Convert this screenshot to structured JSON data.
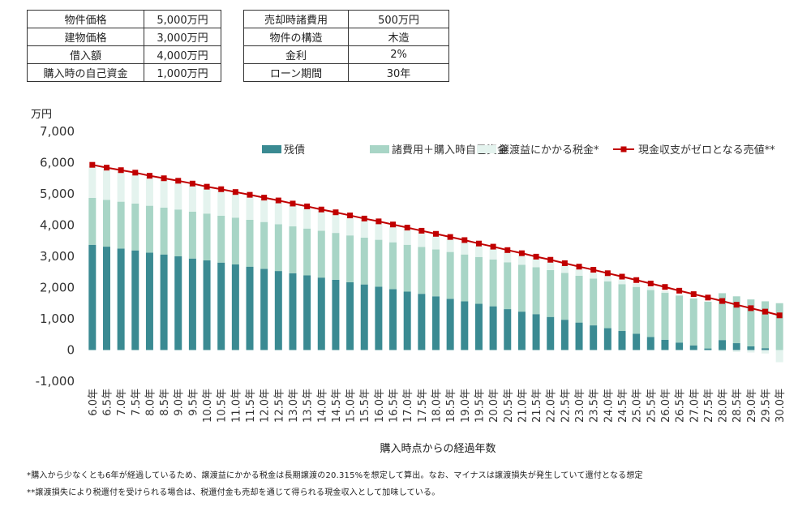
{
  "params_left": [
    {
      "key": "物件価格",
      "value": "5,000万円"
    },
    {
      "key": "建物価格",
      "value": "3,000万円"
    },
    {
      "key": "借入額",
      "value": "4,000万円"
    },
    {
      "key": "購入時の自己資金",
      "value": "1,000万円"
    }
  ],
  "params_right": [
    {
      "key": "売却時諸費用",
      "value": "500万円"
    },
    {
      "key": "物件の構造",
      "value": "木造"
    },
    {
      "key": "金利",
      "value": "2%"
    },
    {
      "key": "ローン期間",
      "value": "30年"
    }
  ],
  "chart_data": {
    "type": "bar",
    "stacked": true,
    "ylabel": "万円",
    "xlabel": "購入時点からの経過年数",
    "ylim": [
      -1000,
      7000
    ],
    "yticks": [
      -1000,
      0,
      1000,
      2000,
      3000,
      4000,
      5000,
      6000,
      7000
    ],
    "ytick_labels": [
      "-1,000",
      "0",
      "1,000",
      "2,000",
      "3,000",
      "4,000",
      "5,000",
      "6,000",
      "7,000"
    ],
    "legend_position": "top-right",
    "categories": [
      "6.0年",
      "6.5年",
      "7.0年",
      "7.5年",
      "8.0年",
      "8.5年",
      "9.0年",
      "9.5年",
      "10.0年",
      "10.5年",
      "11.0年",
      "11.5年",
      "12.0年",
      "12.5年",
      "13.0年",
      "13.5年",
      "14.0年",
      "14.5年",
      "15.0年",
      "15.5年",
      "16.0年",
      "16.5年",
      "17.0年",
      "17.5年",
      "18.0年",
      "18.5年",
      "19.0年",
      "19.5年",
      "20.0年",
      "20.5年",
      "21.0年",
      "21.5年",
      "22.0年",
      "22.5年",
      "23.0年",
      "23.5年",
      "24.0年",
      "24.5年",
      "25.0年",
      "25.5年",
      "26.0年",
      "26.5年",
      "27.0年",
      "27.5年",
      "28.0年",
      "28.5年",
      "29.0年",
      "29.5年",
      "30.0年"
    ],
    "series": [
      {
        "name": "残債",
        "type": "bar",
        "color": "#3a8a92",
        "values": [
          3370,
          3310,
          3250,
          3190,
          3120,
          3060,
          3000,
          2930,
          2870,
          2800,
          2740,
          2670,
          2600,
          2530,
          2460,
          2390,
          2320,
          2250,
          2170,
          2100,
          2030,
          1950,
          1870,
          1800,
          1720,
          1640,
          1560,
          1480,
          1400,
          1310,
          1230,
          1150,
          1060,
          970,
          880,
          790,
          700,
          610,
          520,
          420,
          330,
          240,
          150,
          50,
          320,
          220,
          120,
          60,
          0
        ]
      },
      {
        "name": "諸費用＋購入時自己資金",
        "type": "bar",
        "color": "#a8d5c6",
        "values": [
          1500,
          1500,
          1500,
          1500,
          1500,
          1500,
          1500,
          1500,
          1500,
          1500,
          1500,
          1500,
          1500,
          1500,
          1500,
          1500,
          1500,
          1500,
          1500,
          1500,
          1500,
          1500,
          1500,
          1500,
          1500,
          1500,
          1500,
          1500,
          1500,
          1500,
          1500,
          1500,
          1500,
          1500,
          1500,
          1500,
          1500,
          1500,
          1500,
          1500,
          1500,
          1500,
          1500,
          1500,
          1500,
          1500,
          1500,
          1500,
          1500
        ]
      },
      {
        "name": "譲渡益にかかる税金*",
        "type": "bar",
        "color": "#e4f3ee",
        "values": [
          1010,
          980,
          960,
          940,
          910,
          890,
          870,
          840,
          820,
          800,
          770,
          750,
          730,
          700,
          680,
          660,
          630,
          610,
          590,
          560,
          540,
          510,
          490,
          470,
          440,
          420,
          400,
          370,
          350,
          320,
          300,
          280,
          250,
          230,
          210,
          180,
          160,
          130,
          110,
          90,
          60,
          40,
          10,
          -10,
          -40,
          -60,
          -80,
          -110,
          -390
        ]
      },
      {
        "name": "現金収支がゼロとなる売値**",
        "type": "line",
        "color": "#c00000",
        "values": [
          5930,
          5840,
          5760,
          5680,
          5580,
          5500,
          5420,
          5330,
          5230,
          5150,
          5060,
          4970,
          4880,
          4790,
          4690,
          4600,
          4500,
          4410,
          4310,
          4210,
          4120,
          4020,
          3920,
          3820,
          3720,
          3620,
          3520,
          3410,
          3310,
          3200,
          3100,
          2990,
          2890,
          2780,
          2670,
          2570,
          2460,
          2350,
          2240,
          2130,
          2020,
          1900,
          1790,
          1680,
          1570,
          1450,
          1340,
          1230,
          1110
        ]
      }
    ]
  },
  "footnotes": {
    "note1": "*購入から少なくとも6年が経過しているため、譲渡益にかかる税金は長期譲渡の20.315%を想定して算出。なお、マイナスは譲渡損失が発生していて還付となる想定",
    "note2": "**譲渡損失により税還付を受けられる場合は、税還付金も売却を通じて得られる現金収入として加味している。"
  }
}
